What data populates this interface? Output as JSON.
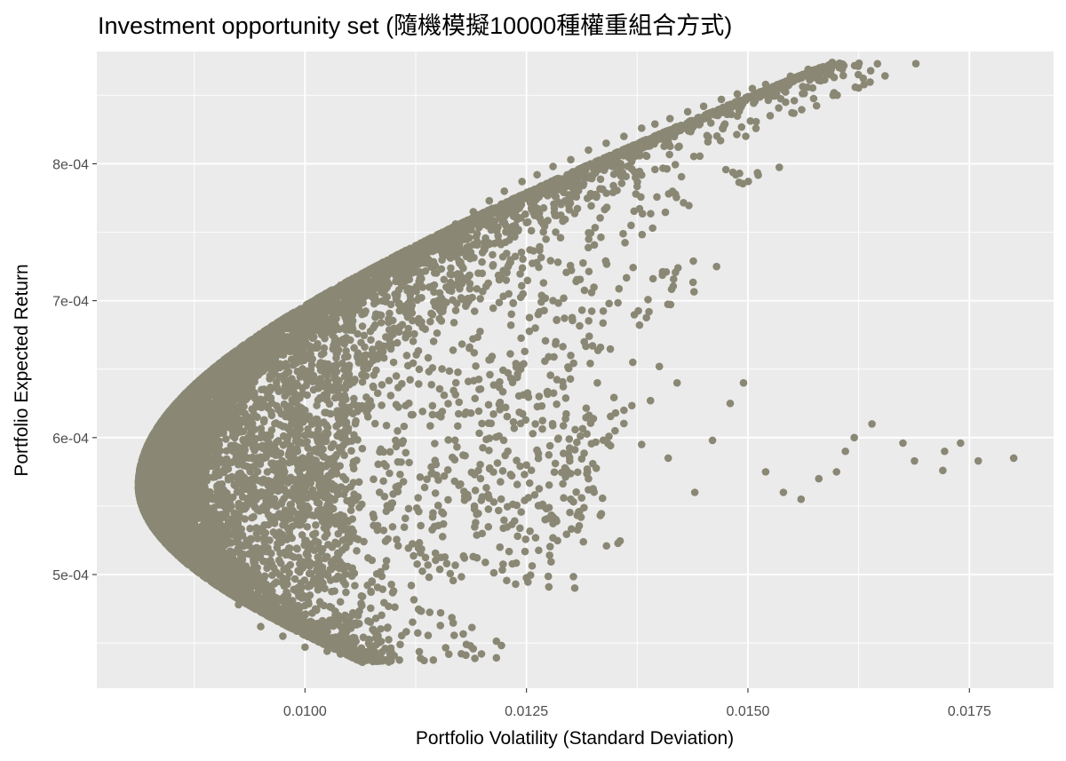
{
  "colors": {
    "panel_bg": "#ebebeb",
    "grid_major": "#ffffff",
    "point": "#8a8875",
    "tick": "#333333",
    "tick_text": "#4d4d4d"
  },
  "chart_data": {
    "type": "scatter",
    "title": "Investment opportunity set (隨機模擬10000種權重組合方式)",
    "xlabel": "Portfolio Volatility (Standard Deviation)",
    "ylabel": "Portfolio Expected Return",
    "xlim": [
      0.00765,
      0.01845
    ],
    "ylim": [
      0.000417,
      0.000882
    ],
    "x_ticks": [
      0.01,
      0.0125,
      0.015,
      0.0175
    ],
    "x_tick_labels": [
      "0.0100",
      "0.0125",
      "0.0150",
      "0.0175"
    ],
    "y_ticks": [
      0.0005,
      0.0006,
      0.0007,
      0.0008
    ],
    "y_tick_labels": [
      "5e-04",
      "6e-04",
      "7e-04",
      "8e-04"
    ],
    "grid": true,
    "legend": "none",
    "n_points": 10000,
    "frontier": {
      "min_volatility": 0.00812,
      "min_volatility_return": 0.000565,
      "upper_vertex": [
        0.01595,
        0.000874
      ],
      "lower_vertex": [
        0.01065,
        0.000436
      ]
    },
    "series": [
      {
        "values": [
          [
            0.01595,
            0.000874
          ],
          [
            0.01568,
            0.000869
          ],
          [
            0.01548,
            0.000864
          ],
          [
            0.0152,
            0.000858
          ],
          [
            0.01505,
            0.000855
          ],
          [
            0.01488,
            0.000851
          ],
          [
            0.0147,
            0.000847
          ],
          [
            0.0145,
            0.000842
          ],
          [
            0.01432,
            0.000838
          ],
          [
            0.01412,
            0.000833
          ],
          [
            0.01395,
            0.000829
          ],
          [
            0.0138,
            0.000826
          ],
          [
            0.0136,
            0.00082
          ],
          [
            0.0134,
            0.000815
          ],
          [
            0.0132,
            0.00081
          ],
          [
            0.013,
            0.000803
          ],
          [
            0.0128,
            0.000798
          ],
          [
            0.01262,
            0.000792
          ],
          [
            0.01245,
            0.000787
          ],
          [
            0.01225,
            0.00078
          ],
          [
            0.01208,
            0.000773
          ],
          [
            0.0119,
            0.000765
          ],
          [
            0.0117,
            0.000756
          ],
          [
            0.0115,
            0.000747
          ],
          [
            0.01125,
            0.000735
          ],
          [
            0.011,
            0.000722
          ],
          [
            0.01075,
            0.000708
          ],
          [
            0.0105,
            0.000693
          ],
          [
            0.01025,
            0.000677
          ],
          [
            0.01,
            0.000661
          ],
          [
            0.00975,
            0.000645
          ],
          [
            0.0095,
            0.000627
          ],
          [
            0.00925,
            0.000609
          ],
          [
            0.009,
            0.000593
          ],
          [
            0.00875,
            0.000578
          ],
          [
            0.0085,
            0.000567
          ],
          [
            0.00825,
            0.00056
          ],
          [
            0.00813,
            0.000561
          ],
          [
            0.00825,
            0.000546
          ],
          [
            0.0085,
            0.00053
          ],
          [
            0.00875,
            0.000514
          ],
          [
            0.009,
            0.000497
          ],
          [
            0.00925,
            0.000478
          ],
          [
            0.0095,
            0.000462
          ],
          [
            0.00975,
            0.000455
          ],
          [
            0.01,
            0.000447
          ],
          [
            0.01025,
            0.000444
          ],
          [
            0.0104,
            0.000442
          ],
          [
            0.01065,
            0.000436
          ],
          [
            0.018,
            0.000585
          ],
          [
            0.0176,
            0.000583
          ],
          [
            0.0174,
            0.000596
          ],
          [
            0.01722,
            0.00059
          ],
          [
            0.0172,
            0.000576
          ],
          [
            0.01688,
            0.000583
          ],
          [
            0.01675,
            0.000596
          ],
          [
            0.0164,
            0.00061
          ],
          [
            0.0162,
            0.0006
          ],
          [
            0.0161,
            0.00059
          ],
          [
            0.016,
            0.000575
          ],
          [
            0.0158,
            0.00057
          ],
          [
            0.0156,
            0.000555
          ],
          [
            0.0154,
            0.00056
          ],
          [
            0.0152,
            0.000575
          ],
          [
            0.01495,
            0.00064
          ],
          [
            0.0148,
            0.000625
          ],
          [
            0.0146,
            0.000598
          ],
          [
            0.0144,
            0.00056
          ],
          [
            0.0142,
            0.00064
          ],
          [
            0.014,
            0.000652
          ],
          [
            0.0139,
            0.000627
          ],
          [
            0.0137,
            0.000655
          ],
          [
            0.0135,
            0.000605
          ],
          [
            0.0132,
            0.00057
          ],
          [
            0.013,
            0.000555
          ],
          [
            0.0128,
            0.000542
          ],
          [
            0.0126,
            0.00061
          ],
          [
            0.0125,
            0.00058
          ],
          [
            0.0124,
            0.000528
          ],
          [
            0.0122,
            0.00052
          ],
          [
            0.012,
            0.00053
          ],
          [
            0.0118,
            0.000512
          ],
          [
            0.0116,
            0.000508
          ],
          [
            0.0114,
            0.000498
          ],
          [
            0.0112,
            0.000492
          ],
          [
            0.011,
            0.000488
          ],
          [
            0.0108,
            0.000468
          ],
          [
            0.0106,
            0.00047
          ],
          [
            0.0102,
            0.0005
          ],
          [
            0.0098,
            0.000505
          ],
          [
            0.0096,
            0.000525
          ],
          [
            0.0092,
            0.000545
          ],
          [
            0.0088,
            0.00056
          ],
          [
            0.0086,
            0.00059
          ],
          [
            0.009,
            0.00061
          ],
          [
            0.0095,
            0.0006
          ],
          [
            0.01,
            0.00062
          ],
          [
            0.0105,
            0.00064
          ],
          [
            0.011,
            0.000655
          ],
          [
            0.0115,
            0.0007
          ],
          [
            0.012,
            0.00072
          ],
          [
            0.0123,
            0.000705
          ],
          [
            0.0126,
            0.00068
          ],
          [
            0.013,
            0.00066
          ],
          [
            0.0133,
            0.00064
          ],
          [
            0.0136,
            0.00062
          ],
          [
            0.0138,
            0.000595
          ],
          [
            0.0141,
            0.000585
          ]
        ]
      }
    ]
  }
}
